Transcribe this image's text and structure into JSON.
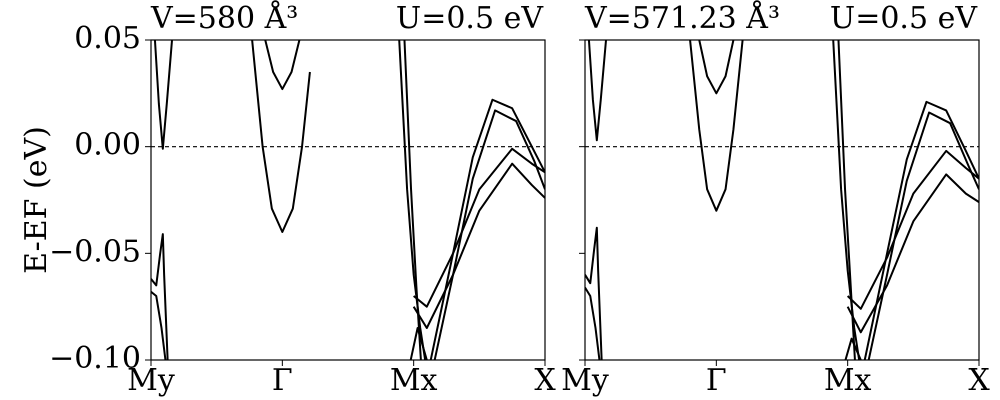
{
  "chart_data": [
    {
      "type": "line",
      "title": "V=580 Å³",
      "annotation": "U=0.5 eV",
      "ylabel": "E-EF (eV)",
      "color": "#000000",
      "xlim": [
        0,
        3
      ],
      "xticks": [
        {
          "value": 0,
          "label": "My"
        },
        {
          "value": 1,
          "label": "Γ"
        },
        {
          "value": 2,
          "label": "Mx"
        },
        {
          "value": 3,
          "label": "X"
        }
      ],
      "ylim": [
        -0.1,
        0.05
      ],
      "yticks": [
        0.05,
        {
          "value": 0,
          "label": "0.00"
        },
        {
          "value": -0.05,
          "label": "−0.05"
        },
        {
          "value": -0.1,
          "label": "−0.10"
        }
      ],
      "hline": 0,
      "series": [
        {
          "x": [
            0.03,
            0.06,
            0.09,
            0.12,
            0.16
          ],
          "values": [
            0.05,
            0.02,
            -0.001,
            0.02,
            0.05
          ]
        },
        {
          "x": [
            0,
            0.04,
            0.07,
            0.09,
            0.1,
            0.13
          ],
          "values": [
            -0.062,
            -0.065,
            -0.05,
            -0.041,
            -0.06,
            -0.105
          ]
        },
        {
          "x": [
            0,
            0.04,
            0.08,
            0.12
          ],
          "values": [
            -0.068,
            -0.07,
            -0.085,
            -0.105
          ]
        },
        {
          "x": [
            0.77,
            0.85,
            0.92,
            1,
            1.08,
            1.15,
            1.21
          ],
          "values": [
            0.05,
            0.0,
            -0.029,
            -0.04,
            -0.029,
            0.0,
            0.035
          ]
        },
        {
          "x": [
            0.87,
            0.93,
            1,
            1.07,
            1.13
          ],
          "values": [
            0.05,
            0.035,
            0.027,
            0.035,
            0.05
          ]
        },
        {
          "x": [
            1.89,
            1.95,
            2.0,
            2.05,
            2.1
          ],
          "values": [
            0.05,
            -0.02,
            -0.06,
            -0.085,
            -0.105
          ]
        },
        {
          "x": [
            1.93,
            1.98,
            2.02,
            2.06
          ],
          "values": [
            0.05,
            -0.02,
            -0.065,
            -0.105
          ]
        },
        {
          "x": [
            1.96,
            2.03,
            2.1,
            2.16
          ],
          "values": [
            -0.105,
            -0.085,
            -0.1,
            -0.105
          ]
        },
        {
          "x": [
            2.13,
            2.3,
            2.45,
            2.6,
            2.75,
            2.9,
            3.0
          ],
          "values": [
            -0.1,
            -0.05,
            -0.005,
            0.022,
            0.018,
            0.0,
            -0.012
          ]
        },
        {
          "x": [
            2.16,
            2.3,
            2.45,
            2.62,
            2.78,
            2.92,
            3.0
          ],
          "values": [
            -0.1,
            -0.06,
            -0.015,
            0.017,
            0.012,
            -0.007,
            -0.02
          ]
        },
        {
          "x": [
            2.0,
            2.1,
            2.3,
            2.5,
            2.75,
            2.9,
            3.0
          ],
          "values": [
            -0.07,
            -0.075,
            -0.05,
            -0.02,
            -0.001,
            -0.008,
            -0.012
          ]
        },
        {
          "x": [
            2.0,
            2.1,
            2.3,
            2.5,
            2.75,
            2.9,
            3.0
          ],
          "values": [
            -0.075,
            -0.085,
            -0.06,
            -0.03,
            -0.008,
            -0.018,
            -0.024
          ]
        }
      ]
    },
    {
      "type": "line",
      "title": "V=571.23 Å³",
      "annotation": "U=0.5 eV",
      "color": "#000000",
      "xlim": [
        0,
        3
      ],
      "xticks": [
        {
          "value": 0,
          "label": "My"
        },
        {
          "value": 1,
          "label": "Γ"
        },
        {
          "value": 2,
          "label": "Mx"
        },
        {
          "value": 3,
          "label": "X"
        }
      ],
      "ylim": [
        -0.1,
        0.05
      ],
      "yticks": [
        0.05,
        0,
        -0.05,
        -0.1
      ],
      "ytick_labels": false,
      "hline": 0,
      "series": [
        {
          "x": [
            0.03,
            0.06,
            0.09,
            0.12,
            0.16
          ],
          "values": [
            0.05,
            0.022,
            0.003,
            0.022,
            0.05
          ]
        },
        {
          "x": [
            0,
            0.04,
            0.07,
            0.09,
            0.1,
            0.13
          ],
          "values": [
            -0.06,
            -0.064,
            -0.048,
            -0.038,
            -0.058,
            -0.105
          ]
        },
        {
          "x": [
            0,
            0.04,
            0.08,
            0.12
          ],
          "values": [
            -0.066,
            -0.07,
            -0.085,
            -0.105
          ]
        },
        {
          "x": [
            0.8,
            0.87,
            0.93,
            1,
            1.07,
            1.13,
            1.2
          ],
          "values": [
            0.05,
            0.008,
            -0.02,
            -0.03,
            -0.02,
            0.008,
            0.05
          ]
        },
        {
          "x": [
            0.87,
            0.93,
            1,
            1.07,
            1.13
          ],
          "values": [
            0.05,
            0.033,
            0.025,
            0.033,
            0.05
          ]
        },
        {
          "x": [
            1.89,
            1.95,
            2.0,
            2.05,
            2.1
          ],
          "values": [
            0.05,
            -0.02,
            -0.058,
            -0.085,
            -0.105
          ]
        },
        {
          "x": [
            1.93,
            1.98,
            2.02,
            2.06
          ],
          "values": [
            0.05,
            -0.02,
            -0.062,
            -0.105
          ]
        },
        {
          "x": [
            1.96,
            2.03,
            2.1,
            2.16
          ],
          "values": [
            -0.105,
            -0.09,
            -0.1,
            -0.105
          ]
        },
        {
          "x": [
            2.13,
            2.3,
            2.45,
            2.6,
            2.75,
            2.9,
            3.0
          ],
          "values": [
            -0.1,
            -0.05,
            -0.006,
            0.021,
            0.017,
            -0.002,
            -0.015
          ]
        },
        {
          "x": [
            2.16,
            2.3,
            2.45,
            2.62,
            2.78,
            2.92,
            3.0
          ],
          "values": [
            -0.1,
            -0.06,
            -0.016,
            0.016,
            0.011,
            -0.009,
            -0.02
          ]
        },
        {
          "x": [
            2.0,
            2.1,
            2.3,
            2.5,
            2.75,
            2.9,
            3.0
          ],
          "values": [
            -0.07,
            -0.076,
            -0.052,
            -0.022,
            -0.002,
            -0.01,
            -0.015
          ]
        },
        {
          "x": [
            2.0,
            2.1,
            2.3,
            2.5,
            2.75,
            2.9,
            3.0
          ],
          "values": [
            -0.075,
            -0.087,
            -0.065,
            -0.035,
            -0.013,
            -0.022,
            -0.026
          ]
        }
      ]
    }
  ]
}
